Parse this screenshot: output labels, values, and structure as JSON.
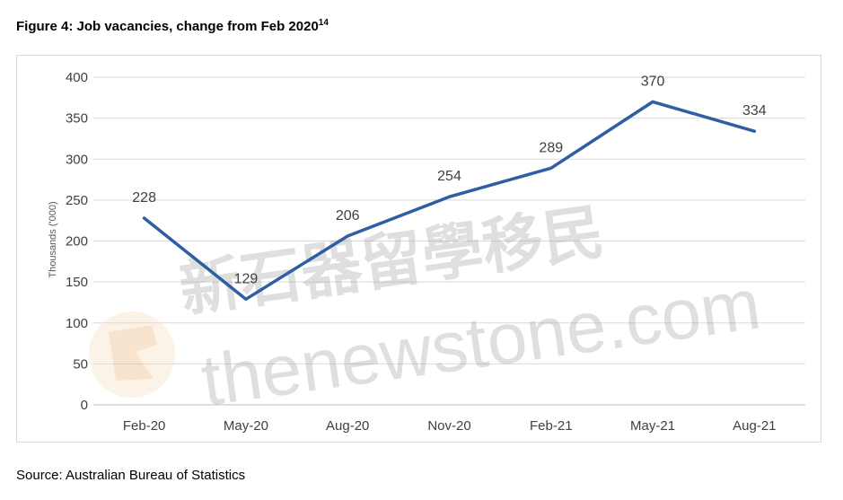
{
  "figure": {
    "title": "Figure 4: Job vacancies, change from Feb 2020",
    "footnote_ref": "14",
    "source": "Source: Australian Bureau of Statistics"
  },
  "watermark": {
    "cn_text": "新石器留學移民",
    "latin_text": "thenewstone.com",
    "color": "#9a9a9a"
  },
  "chart_data": {
    "type": "line",
    "title": "",
    "xlabel": "",
    "ylabel": "Thousands ('000)",
    "categories": [
      "Feb-20",
      "May-20",
      "Aug-20",
      "Nov-20",
      "Feb-21",
      "May-21",
      "Aug-21"
    ],
    "series": [
      {
        "values": [
          228,
          129,
          206,
          254,
          289,
          370,
          334
        ],
        "color": "#2e5fa3"
      }
    ],
    "ylim": [
      0,
      400
    ],
    "yticks": [
      0,
      50,
      100,
      150,
      200,
      250,
      300,
      350,
      400
    ],
    "grid": true,
    "data_labels": true
  }
}
